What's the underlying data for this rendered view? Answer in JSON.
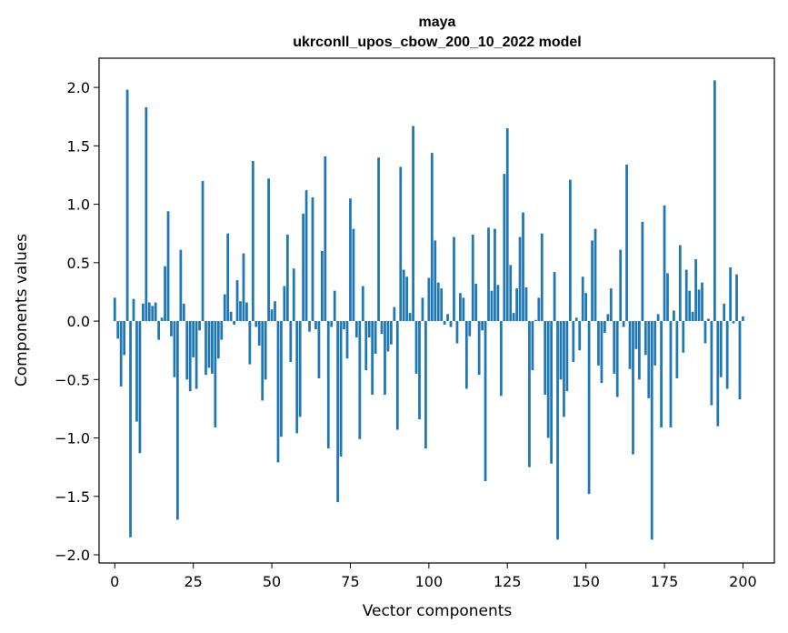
{
  "chart_data": {
    "type": "bar",
    "title": "maya",
    "subtitle": "ukrconll_upos_cbow_200_10_2022 model",
    "xlabel": "Vector components",
    "ylabel": "Components values",
    "xlim": [
      -5,
      210
    ],
    "ylim": [
      -2.07,
      2.25
    ],
    "xticks": [
      0,
      25,
      50,
      75,
      100,
      125,
      150,
      175,
      200
    ],
    "yticks": [
      -2.0,
      -1.5,
      -1.0,
      -0.5,
      0.0,
      0.5,
      1.0,
      1.5,
      2.0
    ],
    "ytick_labels": [
      "−2.0",
      "−1.5",
      "−1.0",
      "−0.5",
      "0.0",
      "0.5",
      "1.0",
      "1.5",
      "2.0"
    ],
    "xtick_labels": [
      "0",
      "25",
      "50",
      "75",
      "100",
      "125",
      "150",
      "175",
      "200"
    ],
    "bar_color": "#1f77b4",
    "grid": false,
    "values": [
      0.2,
      -0.15,
      -0.56,
      -0.29,
      1.98,
      -1.85,
      0.19,
      -0.86,
      -1.13,
      0.15,
      1.83,
      0.16,
      0.13,
      0.16,
      -0.16,
      0.03,
      0.47,
      0.94,
      -0.13,
      -0.48,
      -1.7,
      0.61,
      0.15,
      -0.5,
      -0.6,
      -0.31,
      -0.58,
      -0.08,
      1.2,
      -0.46,
      -0.4,
      -0.45,
      -0.91,
      -0.32,
      -0.16,
      0.23,
      0.75,
      0.08,
      -0.03,
      0.35,
      0.17,
      0.58,
      0.16,
      -0.37,
      1.37,
      -0.05,
      -0.21,
      -0.68,
      -0.5,
      1.22,
      0.1,
      0.17,
      -1.21,
      -0.99,
      0.3,
      0.74,
      -0.35,
      0.45,
      -0.96,
      -0.82,
      0.92,
      1.12,
      -0.09,
      1.06,
      -0.07,
      -0.49,
      0.6,
      1.41,
      -1.09,
      -0.05,
      0.26,
      -1.55,
      -1.16,
      -0.07,
      -0.32,
      1.05,
      0.79,
      -0.14,
      -1.01,
      0.3,
      -0.42,
      -0.14,
      -0.63,
      -0.28,
      1.4,
      -0.11,
      -0.63,
      -0.26,
      -0.2,
      0.12,
      -0.93,
      1.32,
      0.44,
      0.38,
      0.07,
      1.67,
      -0.45,
      -0.84,
      0.2,
      -1.09,
      0.37,
      1.44,
      0.69,
      0.33,
      0.28,
      -0.03,
      0.06,
      -0.05,
      0.72,
      -0.19,
      0.24,
      0.2,
      -0.58,
      -0.13,
      0.74,
      0.32,
      -0.46,
      -0.08,
      -1.37,
      0.8,
      0.26,
      0.79,
      0.31,
      -0.64,
      1.26,
      1.65,
      0.48,
      0.07,
      0.28,
      0.72,
      0.93,
      0.29,
      -1.25,
      -0.42,
      0.01,
      0.2,
      0.75,
      -0.63,
      -1.0,
      -1.22,
      0.42,
      -1.87,
      -0.5,
      -0.82,
      -0.6,
      1.21,
      -0.35,
      0.03,
      -0.25,
      0.38,
      0.24,
      -1.48,
      0.69,
      0.79,
      -0.38,
      -0.53,
      -0.1,
      0.06,
      0.28,
      -0.45,
      -0.65,
      0.61,
      -0.05,
      1.34,
      -0.41,
      -1.14,
      -0.24,
      -0.5,
      0.85,
      -0.29,
      -0.66,
      -1.87,
      -0.38,
      0.06,
      -0.91,
      0.99,
      0.41,
      -0.91,
      0.09,
      -0.49,
      0.65,
      -0.27,
      0.44,
      0.26,
      0.08,
      0.53,
      0.27,
      0.33,
      -0.19,
      0.02,
      -0.72,
      2.06,
      -0.9,
      -0.48,
      0.15,
      -0.58,
      0.46,
      -0.02,
      0.4,
      -0.67,
      0.04,
      0.0,
      0.0
    ]
  }
}
